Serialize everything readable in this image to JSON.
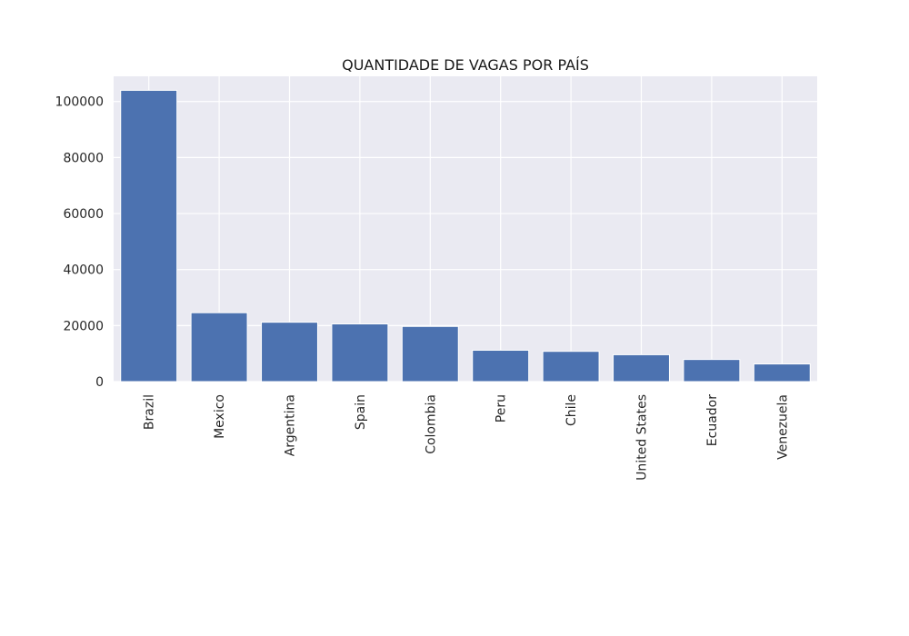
{
  "chart_data": {
    "type": "bar",
    "title": "QUANTIDADE DE VAGAS POR PAÍS",
    "xlabel": "",
    "ylabel": "",
    "categories": [
      "Brazil",
      "Mexico",
      "Argentina",
      "Spain",
      "Colombia",
      "Peru",
      "Chile",
      "United States",
      "Ecuador",
      "Venezuela"
    ],
    "values": [
      104000,
      24600,
      21200,
      20600,
      19700,
      11200,
      10800,
      9600,
      7900,
      6300
    ],
    "ylim": [
      0,
      109000
    ],
    "yticks": [
      0,
      20000,
      40000,
      60000,
      80000,
      100000
    ],
    "ytick_labels": [
      "0",
      "20000",
      "40000",
      "60000",
      "80000",
      "100000"
    ],
    "grid": true,
    "bar_color": "#4c72b0",
    "axes_background": "#eaeaf2",
    "grid_color": "#ffffff"
  }
}
